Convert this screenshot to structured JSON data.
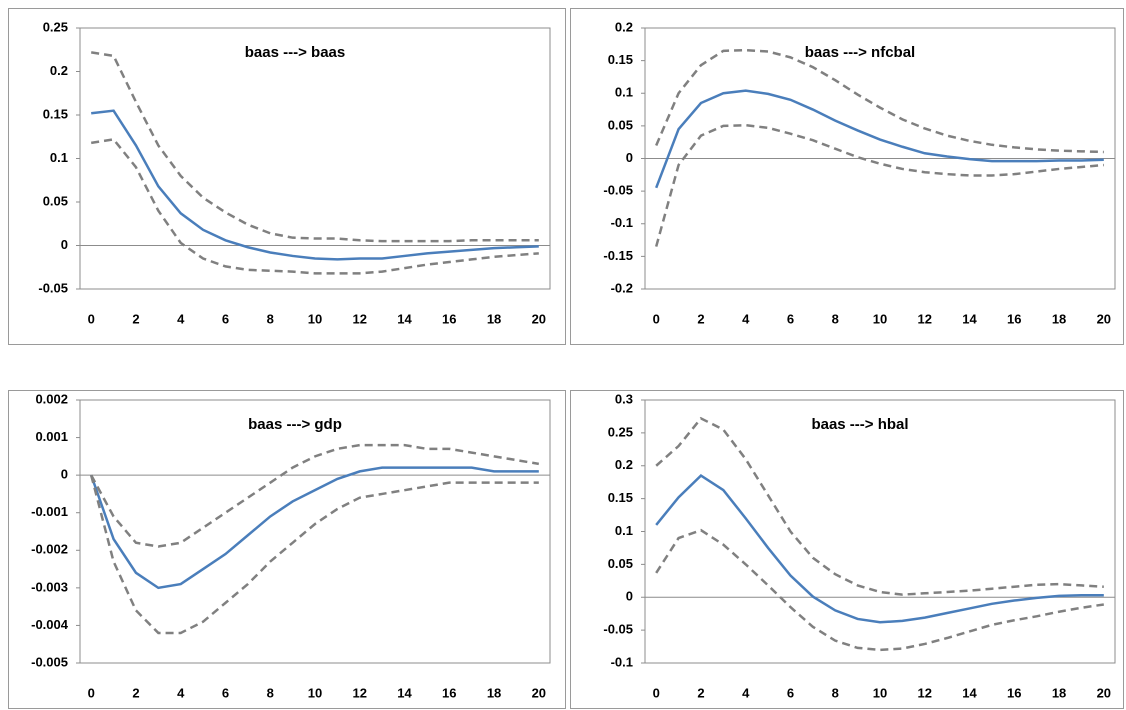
{
  "chart_data": [
    {
      "type": "line",
      "title": "baas ---> baas",
      "x": [
        0,
        1,
        2,
        3,
        4,
        5,
        6,
        7,
        8,
        9,
        10,
        11,
        12,
        13,
        14,
        15,
        16,
        17,
        18,
        19,
        20
      ],
      "xlim": [
        -0.5,
        20.5
      ],
      "xticks": [
        0,
        2,
        4,
        6,
        8,
        10,
        12,
        14,
        16,
        18,
        20
      ],
      "ylim": [
        -0.05,
        0.25
      ],
      "yticks": [
        -0.05,
        0,
        0.05,
        0.1,
        0.15,
        0.2,
        0.25
      ],
      "series": [
        {
          "color": "#4a7ebb",
          "dash": false,
          "values": [
            0.152,
            0.155,
            0.115,
            0.068,
            0.037,
            0.018,
            0.006,
            -0.002,
            -0.008,
            -0.012,
            -0.015,
            -0.016,
            -0.015,
            -0.015,
            -0.012,
            -0.009,
            -0.007,
            -0.005,
            -0.003,
            -0.002,
            -0.001
          ]
        },
        {
          "color": "#808080",
          "dash": true,
          "values": [
            0.222,
            0.218,
            0.165,
            0.115,
            0.08,
            0.055,
            0.038,
            0.024,
            0.014,
            0.009,
            0.008,
            0.008,
            0.006,
            0.005,
            0.005,
            0.005,
            0.005,
            0.006,
            0.006,
            0.006,
            0.006
          ]
        },
        {
          "color": "#808080",
          "dash": true,
          "values": [
            0.118,
            0.122,
            0.09,
            0.04,
            0.003,
            -0.015,
            -0.024,
            -0.028,
            -0.029,
            -0.03,
            -0.032,
            -0.032,
            -0.032,
            -0.03,
            -0.026,
            -0.022,
            -0.019,
            -0.016,
            -0.013,
            -0.011,
            -0.009
          ]
        }
      ]
    },
    {
      "type": "line",
      "title": "baas ---> nfcbal",
      "x": [
        0,
        1,
        2,
        3,
        4,
        5,
        6,
        7,
        8,
        9,
        10,
        11,
        12,
        13,
        14,
        15,
        16,
        17,
        18,
        19,
        20
      ],
      "xlim": [
        -0.5,
        20.5
      ],
      "xticks": [
        0,
        2,
        4,
        6,
        8,
        10,
        12,
        14,
        16,
        18,
        20
      ],
      "ylim": [
        -0.2,
        0.2
      ],
      "yticks": [
        -0.2,
        -0.15,
        -0.1,
        -0.05,
        0,
        0.05,
        0.1,
        0.15,
        0.2
      ],
      "series": [
        {
          "color": "#4a7ebb",
          "dash": false,
          "values": [
            -0.045,
            0.045,
            0.085,
            0.1,
            0.104,
            0.099,
            0.09,
            0.075,
            0.058,
            0.043,
            0.029,
            0.018,
            0.008,
            0.003,
            -0.001,
            -0.004,
            -0.004,
            -0.004,
            -0.003,
            -0.003,
            -0.002
          ]
        },
        {
          "color": "#808080",
          "dash": true,
          "values": [
            0.02,
            0.1,
            0.143,
            0.165,
            0.166,
            0.164,
            0.155,
            0.14,
            0.12,
            0.098,
            0.078,
            0.06,
            0.046,
            0.035,
            0.027,
            0.021,
            0.017,
            0.014,
            0.012,
            0.011,
            0.01
          ]
        },
        {
          "color": "#808080",
          "dash": true,
          "values": [
            -0.135,
            -0.01,
            0.035,
            0.05,
            0.051,
            0.047,
            0.038,
            0.028,
            0.015,
            0.002,
            -0.008,
            -0.016,
            -0.021,
            -0.024,
            -0.026,
            -0.026,
            -0.024,
            -0.02,
            -0.016,
            -0.013,
            -0.01
          ]
        }
      ]
    },
    {
      "type": "line",
      "title": "baas ---> gdp",
      "x": [
        0,
        1,
        2,
        3,
        4,
        5,
        6,
        7,
        8,
        9,
        10,
        11,
        12,
        13,
        14,
        15,
        16,
        17,
        18,
        19,
        20
      ],
      "xlim": [
        -0.5,
        20.5
      ],
      "xticks": [
        0,
        2,
        4,
        6,
        8,
        10,
        12,
        14,
        16,
        18,
        20
      ],
      "ylim": [
        -0.005,
        0.002
      ],
      "yticks": [
        -0.005,
        -0.004,
        -0.003,
        -0.002,
        -0.001,
        0,
        0.001,
        0.002
      ],
      "series": [
        {
          "color": "#4a7ebb",
          "dash": false,
          "values": [
            0,
            -0.0017,
            -0.0026,
            -0.003,
            -0.0029,
            -0.0025,
            -0.0021,
            -0.0016,
            -0.0011,
            -0.0007,
            -0.0004,
            -0.0001,
            0.0001,
            0.0002,
            0.0002,
            0.0002,
            0.0002,
            0.0002,
            0.0001,
            0.0001,
            0.0001
          ]
        },
        {
          "color": "#808080",
          "dash": true,
          "values": [
            0,
            -0.0011,
            -0.0018,
            -0.0019,
            -0.0018,
            -0.0014,
            -0.001,
            -0.0006,
            -0.0002,
            0.0002,
            0.0005,
            0.0007,
            0.0008,
            0.0008,
            0.0008,
            0.0007,
            0.0007,
            0.0006,
            0.0005,
            0.0004,
            0.0003
          ]
        },
        {
          "color": "#808080",
          "dash": true,
          "values": [
            0,
            -0.0023,
            -0.0036,
            -0.0042,
            -0.0042,
            -0.0039,
            -0.0034,
            -0.0029,
            -0.0023,
            -0.0018,
            -0.0013,
            -0.0009,
            -0.0006,
            -0.0005,
            -0.0004,
            -0.0003,
            -0.0002,
            -0.0002,
            -0.0002,
            -0.0002,
            -0.0002
          ]
        }
      ]
    },
    {
      "type": "line",
      "title": "baas ---> hbal",
      "x": [
        0,
        1,
        2,
        3,
        4,
        5,
        6,
        7,
        8,
        9,
        10,
        11,
        12,
        13,
        14,
        15,
        16,
        17,
        18,
        19,
        20
      ],
      "xlim": [
        -0.5,
        20.5
      ],
      "xticks": [
        0,
        2,
        4,
        6,
        8,
        10,
        12,
        14,
        16,
        18,
        20
      ],
      "ylim": [
        -0.1,
        0.3
      ],
      "yticks": [
        -0.1,
        -0.05,
        0,
        0.05,
        0.1,
        0.15,
        0.2,
        0.25,
        0.3
      ],
      "series": [
        {
          "color": "#4a7ebb",
          "dash": false,
          "values": [
            0.11,
            0.152,
            0.185,
            0.163,
            0.12,
            0.075,
            0.033,
            0.001,
            -0.02,
            -0.033,
            -0.038,
            -0.036,
            -0.031,
            -0.024,
            -0.017,
            -0.01,
            -0.005,
            -0.001,
            0.002,
            0.003,
            0.003
          ]
        },
        {
          "color": "#808080",
          "dash": true,
          "values": [
            0.2,
            0.23,
            0.272,
            0.255,
            0.21,
            0.155,
            0.1,
            0.06,
            0.035,
            0.018,
            0.008,
            0.004,
            0.006,
            0.008,
            0.01,
            0.013,
            0.016,
            0.019,
            0.02,
            0.018,
            0.016
          ]
        },
        {
          "color": "#808080",
          "dash": true,
          "values": [
            0.037,
            0.09,
            0.102,
            0.08,
            0.05,
            0.018,
            -0.015,
            -0.045,
            -0.066,
            -0.077,
            -0.08,
            -0.078,
            -0.071,
            -0.062,
            -0.052,
            -0.042,
            -0.035,
            -0.029,
            -0.022,
            -0.016,
            -0.011
          ]
        }
      ]
    }
  ]
}
